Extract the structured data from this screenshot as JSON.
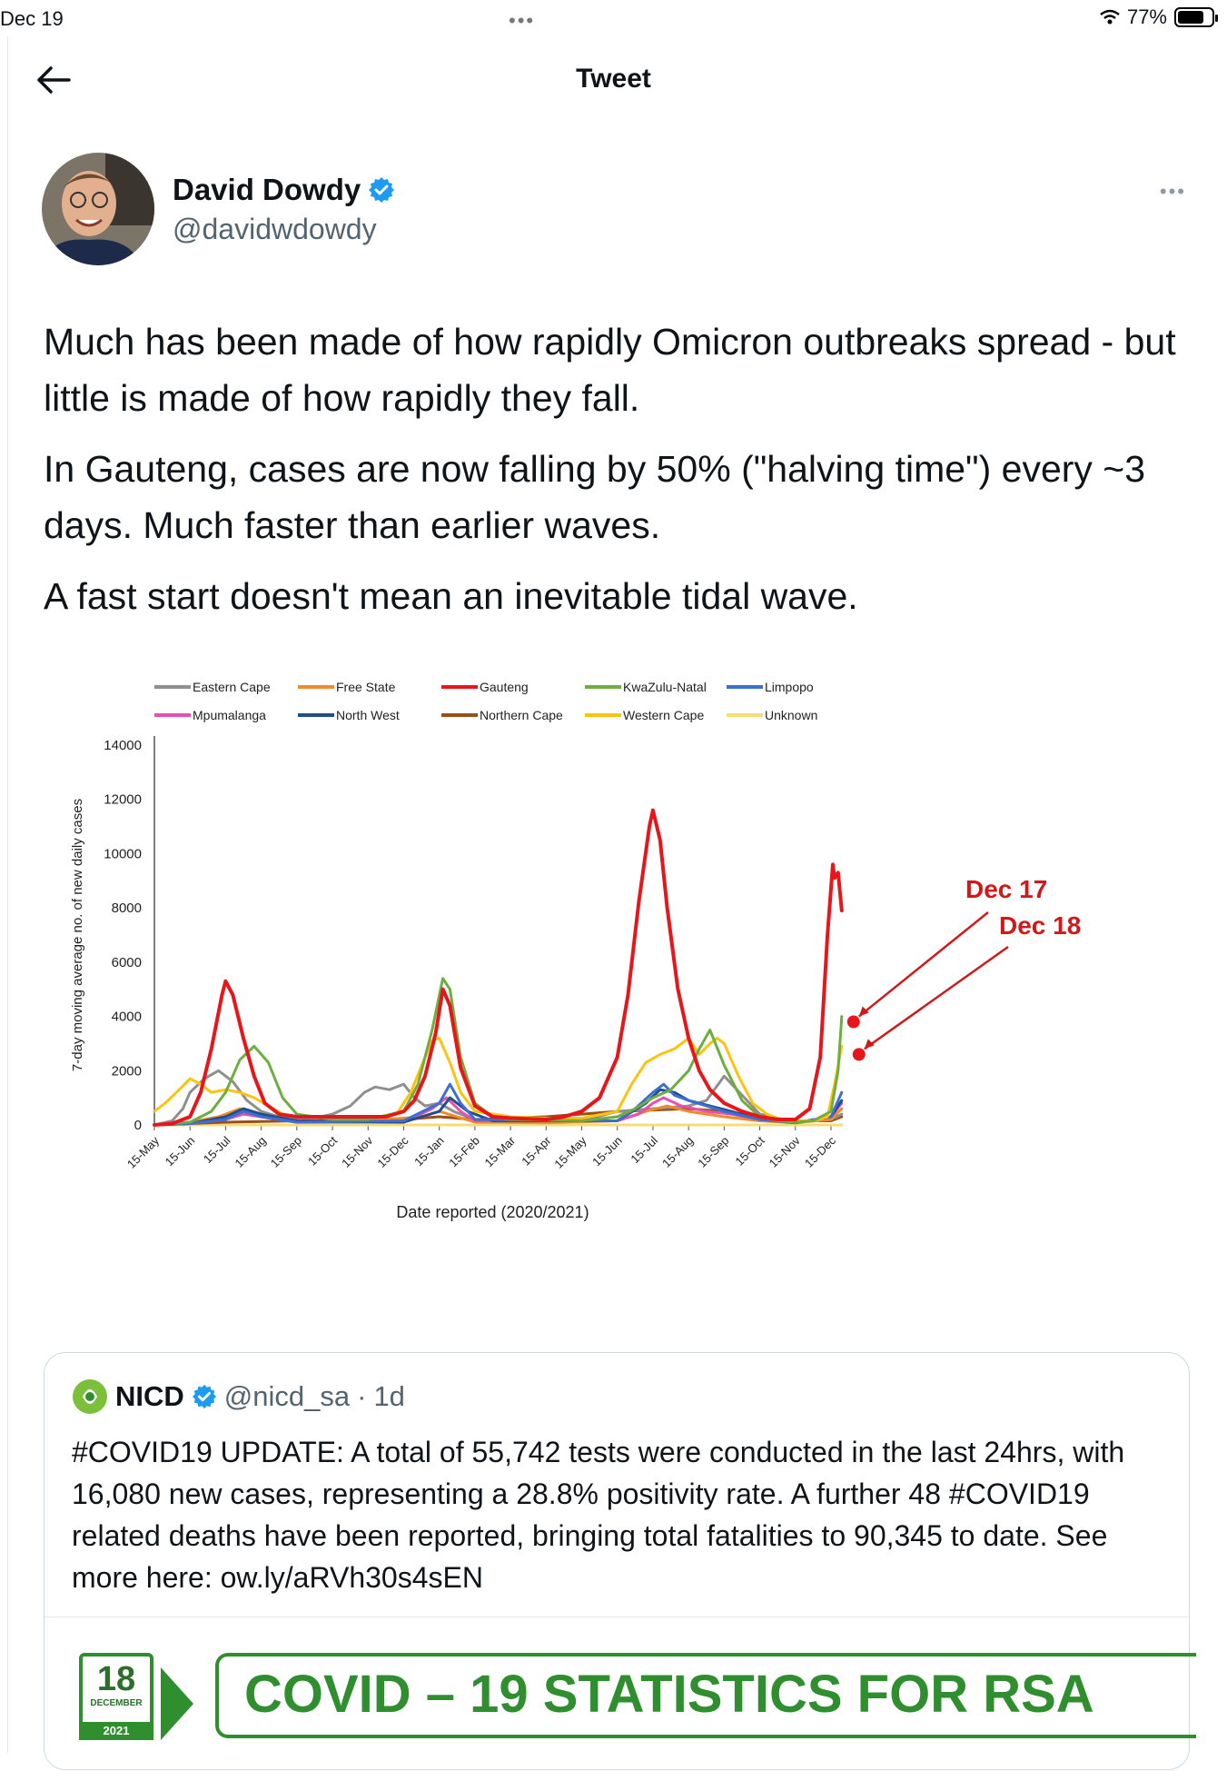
{
  "status_bar": {
    "time": "Dec 19",
    "battery": "77%",
    "battery_level": 0.77
  },
  "nav": {
    "title": "Tweet"
  },
  "author": {
    "name": "David Dowdy",
    "handle": "@davidwdowdy"
  },
  "tweet": {
    "paragraphs": [
      "Much has been made of how rapidly Omicron outbreaks spread - but little is made of how rapidly they fall.",
      "In Gauteng, cases are now falling by 50% (\"halving time\") every ~3 days. Much faster than earlier waves.",
      "A fast start doesn't mean an inevitable tidal wave."
    ]
  },
  "colors": {
    "red": "#e8161a",
    "green": "#6dae3e",
    "yellow": "#ffc20e",
    "grey": "#8f8f8f",
    "blue": "#3c6fd0",
    "orange": "#f08a2a",
    "pink": "#e94fb0",
    "navy": "#1f4e8c",
    "brown": "#9b4f16",
    "lightyellow": "#f6dc77",
    "nicd_green": "#2f8f2f",
    "verified": "#1d9bf0"
  },
  "chart_data": {
    "type": "line",
    "ylabel": "7-day moving average no. of new daily cases",
    "xlabel": "Date reported (2020/2021)",
    "ylim": [
      0,
      14000
    ],
    "y_ticks": [
      0,
      2000,
      4000,
      6000,
      8000,
      10000,
      12000,
      14000
    ],
    "x_ticks": [
      "15-May",
      "15-Jun",
      "15-Jul",
      "15-Aug",
      "15-Sep",
      "15-Oct",
      "15-Nov",
      "15-Dec",
      "15-Jan",
      "15-Feb",
      "15-Mar",
      "15-Apr",
      "15-May",
      "15-Jun",
      "15-Jul",
      "15-Aug",
      "15-Sep",
      "15-Oct",
      "15-Nov",
      "15-Dec"
    ],
    "legend_position": "top",
    "series": [
      {
        "name": "Eastern Cape",
        "color": "#8f8f8f",
        "x": [
          0,
          0.5,
          0.8,
          1,
          1.4,
          1.8,
          2.2,
          2.6,
          3,
          3.5,
          4,
          4.5,
          5,
          5.5,
          5.9,
          6.2,
          6.6,
          7,
          7.3,
          7.6,
          8,
          8.4,
          9,
          10,
          11,
          12,
          13,
          14,
          15,
          15.5,
          16,
          17,
          18,
          19,
          19.3
        ],
        "values": [
          0,
          150,
          600,
          1200,
          1700,
          2000,
          1600,
          900,
          500,
          300,
          250,
          250,
          400,
          700,
          1200,
          1400,
          1300,
          1500,
          1000,
          700,
          800,
          500,
          200,
          150,
          100,
          150,
          500,
          600,
          700,
          900,
          1800,
          400,
          100,
          200,
          400
        ]
      },
      {
        "name": "Free State",
        "color": "#f08a2a",
        "x": [
          0,
          1,
          1.8,
          2.4,
          3,
          4,
          6,
          7.5,
          8,
          8.5,
          9,
          11,
          13,
          13.8,
          14.4,
          15,
          16,
          17,
          18,
          19,
          19.3
        ],
        "values": [
          0,
          100,
          300,
          600,
          300,
          100,
          150,
          300,
          500,
          300,
          100,
          80,
          150,
          500,
          700,
          500,
          300,
          150,
          80,
          200,
          600
        ]
      },
      {
        "name": "Gauteng",
        "color": "#e8161a",
        "x": [
          0,
          0.5,
          1,
          1.3,
          1.6,
          1.9,
          2,
          2.2,
          2.5,
          2.8,
          3.1,
          3.5,
          4,
          5,
          6,
          6.5,
          7,
          7.3,
          7.6,
          7.9,
          8.1,
          8.3,
          8.6,
          9,
          9.5,
          10,
          11,
          11.5,
          12,
          12.5,
          13,
          13.3,
          13.6,
          13.9,
          14,
          14.2,
          14.4,
          14.7,
          15,
          15.3,
          15.6,
          16,
          16.5,
          17,
          17.5,
          18,
          18.4,
          18.7,
          18.9,
          19.05,
          19.1,
          19.2,
          19.3
        ],
        "values": [
          0,
          50,
          300,
          1200,
          2800,
          4800,
          5300,
          4800,
          3200,
          1800,
          800,
          400,
          300,
          300,
          300,
          300,
          500,
          900,
          1800,
          3400,
          5000,
          4400,
          2100,
          700,
          300,
          250,
          200,
          300,
          500,
          1000,
          2500,
          4800,
          8200,
          11000,
          11600,
          10500,
          8000,
          5000,
          3200,
          2000,
          1300,
          800,
          500,
          300,
          200,
          200,
          600,
          2500,
          7000,
          9600,
          9100,
          9300,
          7900
        ]
      },
      {
        "name": "KwaZulu-Natal",
        "color": "#6dae3e",
        "x": [
          0,
          1,
          1.6,
          2,
          2.4,
          2.8,
          3.2,
          3.6,
          4,
          5,
          6,
          7,
          7.4,
          7.8,
          8.1,
          8.3,
          8.6,
          9,
          9.5,
          10,
          12,
          13,
          13.5,
          14,
          14.5,
          15,
          15.3,
          15.6,
          16,
          16.5,
          17,
          17.5,
          18,
          18.5,
          19,
          19.2,
          19.3
        ],
        "values": [
          0,
          100,
          500,
          1200,
          2400,
          2900,
          2300,
          1000,
          400,
          200,
          200,
          500,
          1500,
          3500,
          5400,
          5000,
          2500,
          800,
          300,
          200,
          150,
          300,
          600,
          1000,
          1300,
          2000,
          2800,
          3500,
          2200,
          900,
          300,
          150,
          100,
          150,
          500,
          2000,
          4000
        ]
      },
      {
        "name": "Limpopo",
        "color": "#3c6fd0",
        "x": [
          0,
          1,
          2,
          2.5,
          3,
          4,
          7,
          8,
          8.3,
          8.6,
          9,
          13,
          13.5,
          14,
          14.3,
          14.6,
          15,
          15.5,
          16,
          17,
          18,
          19,
          19.3
        ],
        "values": [
          0,
          50,
          200,
          500,
          300,
          100,
          150,
          800,
          1500,
          800,
          200,
          150,
          600,
          1200,
          1500,
          1100,
          900,
          700,
          500,
          200,
          80,
          300,
          1200
        ]
      },
      {
        "name": "Mpumalanga",
        "color": "#e94fb0",
        "x": [
          0,
          1,
          2,
          2.5,
          3,
          4,
          7,
          7.8,
          8.2,
          8.6,
          9,
          13,
          13.6,
          14,
          14.3,
          14.8,
          15.5,
          16.2,
          17,
          18,
          19,
          19.3
        ],
        "values": [
          0,
          50,
          200,
          400,
          300,
          100,
          100,
          600,
          1000,
          500,
          150,
          150,
          400,
          800,
          1000,
          700,
          500,
          400,
          200,
          80,
          300,
          800
        ]
      },
      {
        "name": "North West",
        "color": "#1f4e8c",
        "x": [
          0,
          1,
          2,
          2.5,
          3,
          4,
          7,
          8,
          8.3,
          8.8,
          9.5,
          13,
          13.8,
          14.2,
          14.6,
          15,
          15.6,
          16.2,
          17,
          18,
          19,
          19.3
        ],
        "values": [
          0,
          50,
          300,
          600,
          400,
          150,
          100,
          500,
          1000,
          500,
          150,
          150,
          800,
          1300,
          1200,
          900,
          700,
          500,
          200,
          80,
          300,
          900
        ]
      },
      {
        "name": "Northern Cape",
        "color": "#9b4f16",
        "x": [
          0,
          2,
          4,
          6,
          7,
          8,
          9,
          10,
          11,
          12,
          13,
          14,
          15,
          16,
          17,
          18,
          19,
          19.3
        ],
        "values": [
          0,
          100,
          150,
          200,
          200,
          300,
          200,
          250,
          300,
          400,
          500,
          550,
          600,
          500,
          300,
          150,
          150,
          300
        ]
      },
      {
        "name": "Western Cape",
        "color": "#ffc20e",
        "x": [
          0,
          0.3,
          0.7,
          1,
          1.3,
          1.6,
          2,
          2.4,
          2.8,
          3.2,
          3.6,
          4,
          5,
          6,
          6.8,
          7.2,
          7.6,
          7.8,
          8,
          8.3,
          8.6,
          9,
          10,
          11,
          12,
          13,
          13.4,
          13.8,
          14.2,
          14.6,
          15,
          15.3,
          15.6,
          15.8,
          16,
          16.4,
          16.8,
          17.2,
          17.6,
          18,
          18.5,
          18.9,
          19.1,
          19.3
        ],
        "values": [
          500,
          800,
          1300,
          1700,
          1500,
          1200,
          1300,
          1200,
          1000,
          700,
          400,
          300,
          250,
          250,
          400,
          1200,
          2500,
          3100,
          3200,
          2300,
          1200,
          500,
          300,
          250,
          250,
          500,
          1500,
          2300,
          2600,
          2800,
          3200,
          2600,
          3000,
          3200,
          3000,
          1800,
          800,
          400,
          200,
          150,
          150,
          300,
          1500,
          2900
        ]
      },
      {
        "name": "Unknown",
        "color": "#f6dc77",
        "x": [
          0,
          19.3
        ],
        "values": [
          0,
          0
        ]
      }
    ],
    "annotations": [
      {
        "label": "Dec 17",
        "value": 3800
      },
      {
        "label": "Dec 18",
        "value": 2600
      }
    ]
  },
  "quote": {
    "name": "NICD",
    "handle": "@nicd_sa",
    "time": "1d",
    "text": "#COVID19 UPDATE: A total of 55,742 tests were conducted in the last 24hrs, with 16,080 new cases, representing a 28.8% positivity rate. A further 48 #COVID19 related deaths have been reported, bringing total fatalities to 90,345 to date. See more here: ow.ly/aRVh30s4sEN",
    "banner": {
      "day": "18",
      "month": "DECEMBER",
      "year": "2021",
      "title": "COVID – 19 STATISTICS FOR RSA"
    }
  }
}
